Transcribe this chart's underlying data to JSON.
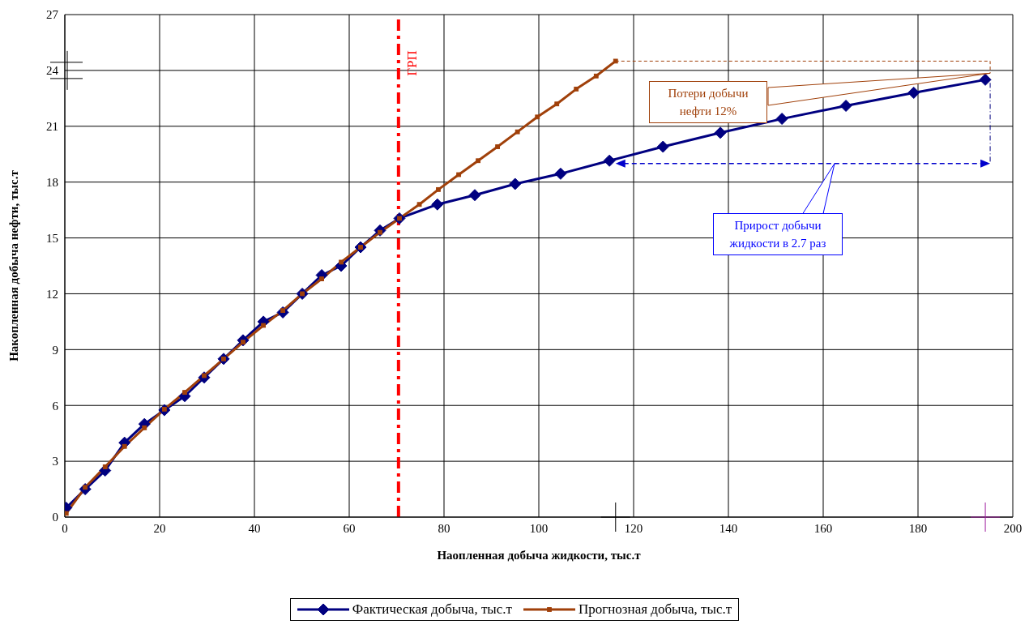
{
  "chart_data": {
    "type": "line",
    "xlabel": "Наопленная добыча жидкости, тыс.т",
    "ylabel": "Накопленная добыча нефти, тыс.т",
    "xlim": [
      0,
      200
    ],
    "xticks": [
      0,
      20,
      40,
      60,
      80,
      100,
      120,
      140,
      160,
      180,
      200
    ],
    "ylim": [
      0,
      27
    ],
    "yticks": [
      0,
      3,
      6,
      9,
      12,
      15,
      18,
      21,
      24,
      27
    ],
    "grid": true,
    "legend": "bottom",
    "line_style": "solid",
    "series": [
      {
        "name": "Фактическая добыча, тыс.т",
        "color": "#000080",
        "marker": "diamond",
        "x": [
          0.3,
          4.3,
          8.5,
          12.6,
          16.8,
          21.0,
          25.3,
          29.4,
          33.5,
          37.6,
          41.9,
          46.0,
          50.1,
          54.2,
          58.3,
          62.4,
          66.5,
          70.6,
          78.6,
          86.5,
          95.0,
          104.6,
          114.9,
          126.2,
          138.3,
          151.3,
          164.8,
          179.1,
          194.2
        ],
        "values": [
          0.5,
          1.5,
          2.5,
          4.0,
          5.0,
          5.75,
          6.5,
          7.5,
          8.5,
          9.5,
          10.5,
          11.0,
          12.0,
          13.0,
          13.5,
          14.5,
          15.4,
          16.05,
          16.8,
          17.3,
          17.9,
          18.45,
          19.15,
          19.9,
          20.65,
          21.4,
          22.1,
          22.8,
          23.5
        ]
      },
      {
        "name": "Прогнозная добыча, тыс.т",
        "color": "#a0400a",
        "marker": "square",
        "x": [
          0.3,
          4.3,
          8.5,
          12.6,
          16.8,
          21.0,
          25.3,
          29.4,
          33.5,
          37.6,
          41.9,
          46.0,
          50.1,
          54.2,
          58.3,
          62.4,
          66.5,
          70.6,
          74.8,
          78.8,
          83.1,
          87.2,
          91.3,
          95.5,
          99.7,
          103.8,
          107.9,
          112.1,
          116.2
        ],
        "values": [
          0.2,
          1.6,
          2.7,
          3.8,
          4.8,
          5.8,
          6.7,
          7.6,
          8.5,
          9.4,
          10.3,
          11.1,
          12.0,
          12.8,
          13.7,
          14.5,
          15.3,
          16.05,
          16.8,
          17.6,
          18.4,
          19.15,
          19.9,
          20.7,
          21.5,
          22.2,
          23.0,
          23.7,
          24.5
        ]
      }
    ],
    "ref_lines": [
      {
        "axis": "x",
        "value": 70.4,
        "label": "ГРП",
        "color": "#ff0000",
        "line_style": "dashdot"
      }
    ],
    "annotations": [
      "Потери добычи нефти 12%",
      "Прирост добычи жидкости  в 2.7 раз"
    ]
  }
}
